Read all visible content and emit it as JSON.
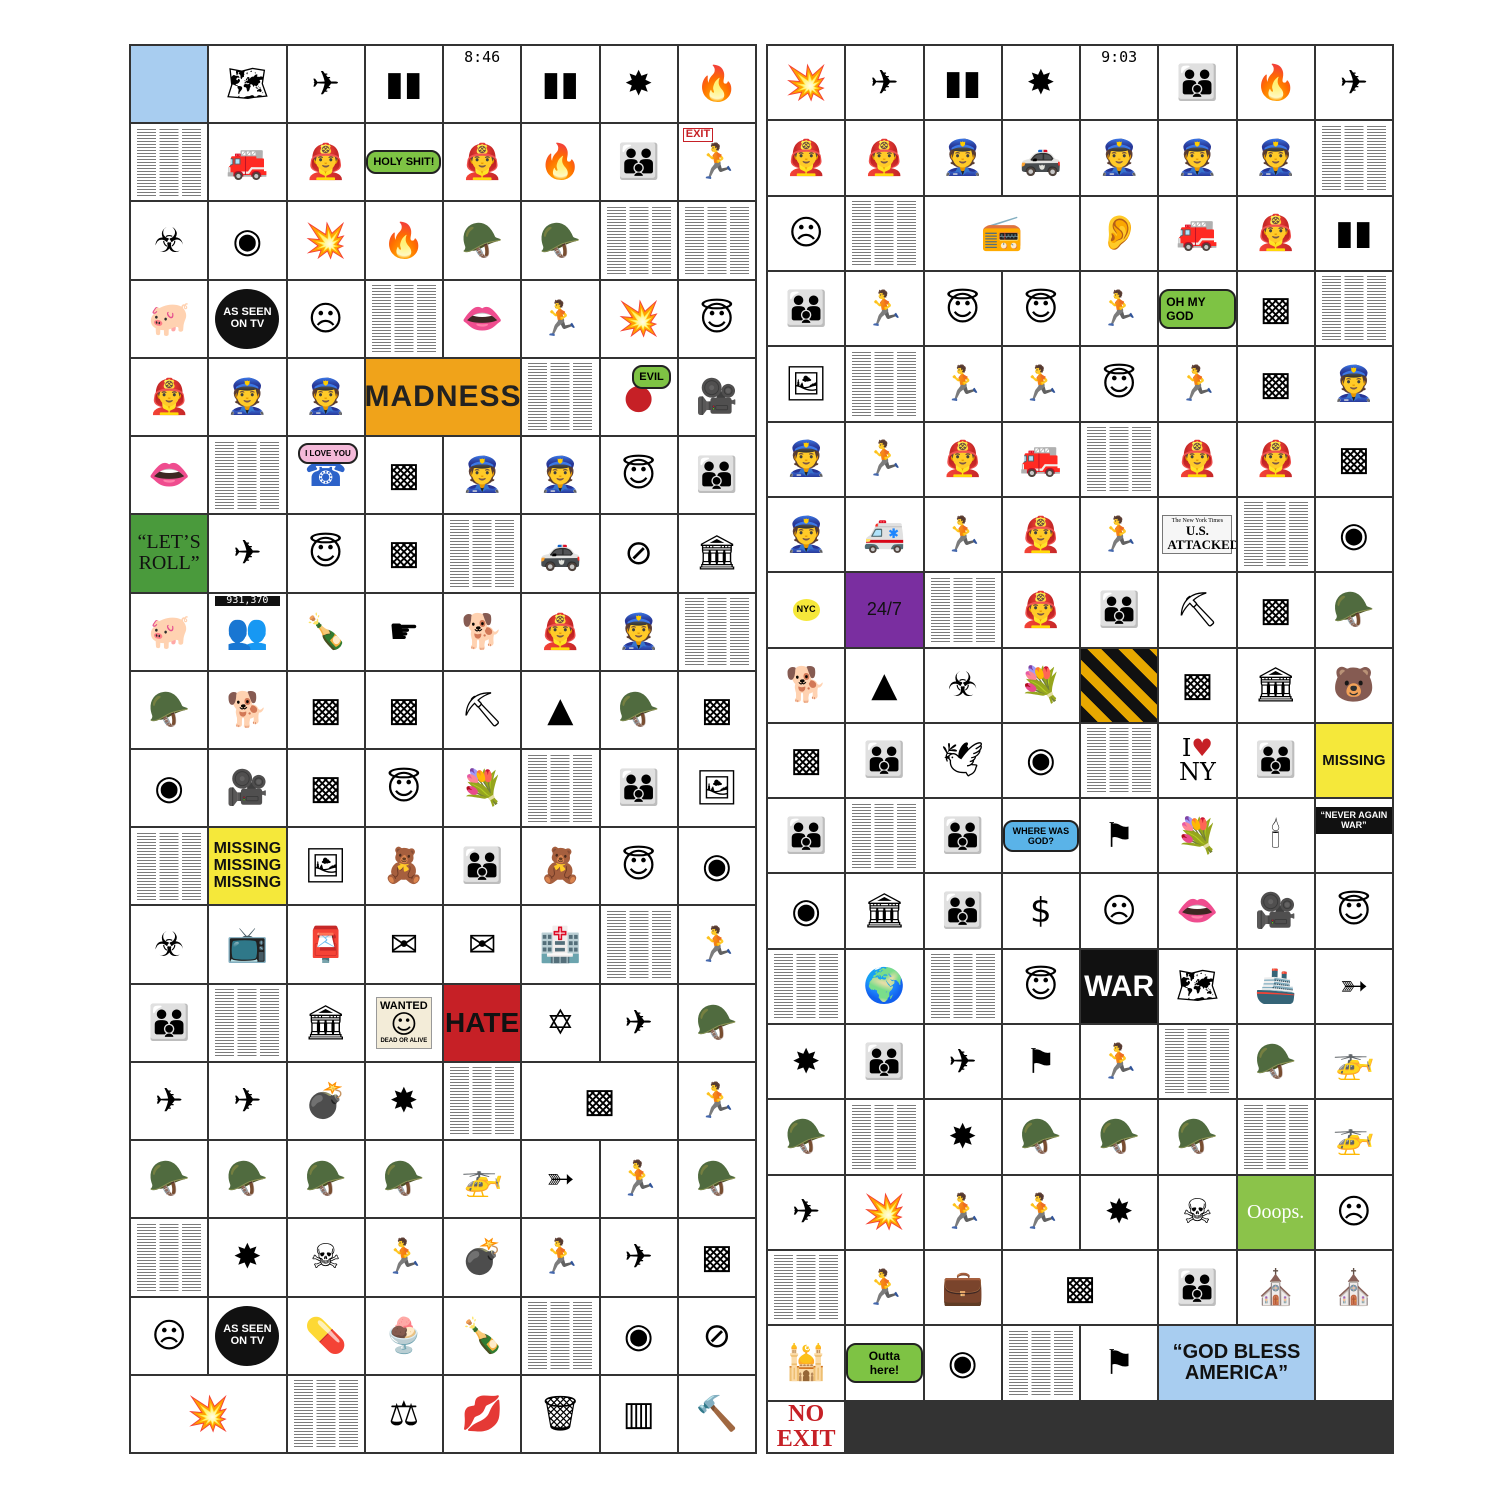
{
  "left": {
    "clock": "8:46",
    "holy_shit": "HOLY SHIT!",
    "exit_sign": "EXIT",
    "as_seen_on_tv": "AS SEEN ON TV",
    "madness": "MADNESS",
    "evil": "EVIL",
    "i_love_you": "I LOVE YOU",
    "lets_roll": "“LET’S ROLL”",
    "counter": "931,370",
    "missing": "MISSING MISSING MISSING",
    "wanted": "WANTED",
    "dead_or_alive": "DEAD OR ALIVE",
    "hate": "HATE",
    "as_seen_on_tv_2": "AS SEEN ON TV"
  },
  "right": {
    "clock": "9:03",
    "oh_my_god": "OH MY GOD",
    "newspaper_headline": "U.S. ATTACKED",
    "newspaper_name": "The New York Times",
    "i_love_nyc": "NYC",
    "twenty_four_seven": "24/7",
    "i_love_ny_i": "I",
    "i_love_ny_ny": "NY",
    "missing": "MISSING",
    "where_was_god": "WHERE WAS GOD?",
    "never_again_war": "“NEVER AGAIN WAR”",
    "war": "WAR",
    "ooops": "Ooops.",
    "outta_here": "Outta here!",
    "god_bless_america": "“GOD BLESS AMERICA”",
    "no_exit": "NO EXIT"
  },
  "colors": {
    "sky_blue": "#a8cdf0",
    "madness_orange": "#f0a31a",
    "lets_roll_green": "#4a9a3c",
    "purple": "#7a2ea0",
    "hate_red": "#c62026",
    "missing_yellow": "#f5e83a",
    "war_black": "#111111",
    "ooops_green": "#8bc34a",
    "gba_blue": "#a8cdf0",
    "no_exit_red": "#c62026"
  }
}
